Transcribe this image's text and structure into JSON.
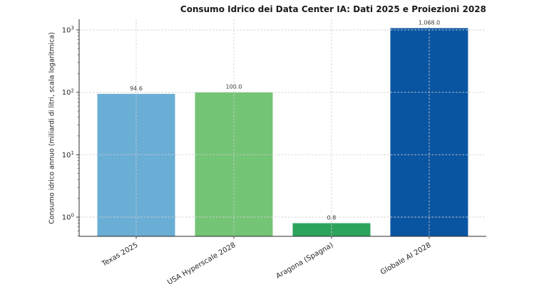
{
  "chart_data": {
    "type": "bar",
    "title": "Consumo Idrico dei Data Center IA: Dati 2025 e Proiezioni 2028",
    "xlabel": "",
    "ylabel": "Consumo idrico annuo (miliardi di litri, scala logaritmica)",
    "yscale": "log",
    "categories": [
      "Texas 2025",
      "USA Hyperscale 2028",
      "Aragona (Spagna)",
      "Globale AI 2028"
    ],
    "values": [
      94.6,
      100.0,
      0.8,
      1068.0
    ],
    "value_labels": [
      "94.6",
      "100.0",
      "0.8",
      "1,068.0"
    ],
    "bar_colors": [
      "#6aaed6",
      "#74c476",
      "#2ea35c",
      "#0a55a2"
    ],
    "ytick_exponents": [
      0,
      1,
      2,
      3
    ],
    "ytick_labels": [
      "10^0",
      "10^1",
      "10^2",
      "10^3"
    ],
    "ylim": [
      0.49,
      1500
    ],
    "grid": "both-dashed",
    "legend": "none",
    "xtick_rotation_deg": 30
  },
  "colors": {
    "background": "#ffffff",
    "grid": "#cfcfcf",
    "axis": "#2b2b2b",
    "tick_text": "#262626",
    "value_text": "#3a3a3a",
    "title_text": "#1a1a1a"
  }
}
